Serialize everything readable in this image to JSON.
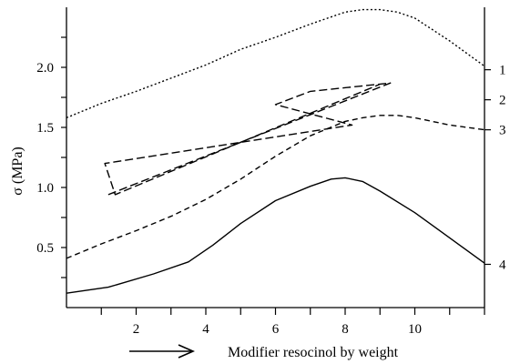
{
  "chart_data": {
    "type": "line",
    "title": "",
    "xlabel": "Modifier resocinol by weight",
    "ylabel": "σ (MPa)",
    "xlim": [
      0,
      12
    ],
    "ylim": [
      0,
      2.5
    ],
    "x_ticks": [
      1,
      2,
      3,
      4,
      5,
      6,
      7,
      8,
      9,
      10,
      11,
      12
    ],
    "x_tick_labels": [
      {
        "x": 2,
        "label": "2"
      },
      {
        "x": 4,
        "label": "4"
      },
      {
        "x": 6,
        "label": "6"
      },
      {
        "x": 8,
        "label": "8"
      },
      {
        "x": 10,
        "label": "10"
      }
    ],
    "y_ticks": [
      0.25,
      0.5,
      0.75,
      1.0,
      1.25,
      1.5,
      1.75,
      2.0,
      2.25
    ],
    "y_tick_labels": [
      {
        "y": 0.5,
        "label": "0.5"
      },
      {
        "y": 1.0,
        "label": "1.0"
      },
      {
        "y": 1.5,
        "label": "1.5"
      },
      {
        "y": 2.0,
        "label": "2.0"
      }
    ],
    "right_labels": [
      {
        "y": 1.98,
        "label": "1"
      },
      {
        "y": 1.73,
        "label": "2"
      },
      {
        "y": 1.48,
        "label": "3"
      },
      {
        "y": 0.36,
        "label": "4"
      }
    ],
    "series": [
      {
        "label": "1",
        "style": "dotted",
        "x": [
          0,
          1,
          2,
          3,
          4,
          5,
          6,
          7,
          7.5,
          8,
          8.5,
          9,
          9.5,
          10,
          11,
          12
        ],
        "y": [
          1.58,
          1.7,
          1.8,
          1.91,
          2.02,
          2.15,
          2.25,
          2.36,
          2.41,
          2.46,
          2.48,
          2.48,
          2.46,
          2.41,
          2.22,
          2.01
        ]
      },
      {
        "label": "2",
        "style": "long-dash",
        "x": [
          1.2,
          9.3,
          7.0,
          6.0,
          8.2,
          1.1,
          1.4,
          9.0
        ],
        "y": [
          0.94,
          1.87,
          1.8,
          1.69,
          1.52,
          1.2,
          0.94,
          1.86
        ]
      },
      {
        "label": "3",
        "style": "dashed",
        "x": [
          0,
          1,
          2,
          3,
          4,
          5,
          6,
          7,
          8,
          8.5,
          9,
          9.5,
          10,
          11,
          12
        ],
        "y": [
          0.41,
          0.53,
          0.64,
          0.76,
          0.9,
          1.07,
          1.26,
          1.43,
          1.55,
          1.58,
          1.6,
          1.6,
          1.58,
          1.52,
          1.48
        ]
      },
      {
        "label": "4",
        "style": "solid",
        "x": [
          0,
          1.2,
          2.5,
          3.5,
          4.2,
          5,
          6,
          7,
          7.6,
          8,
          8.5,
          9,
          10,
          11,
          12
        ],
        "y": [
          0.12,
          0.17,
          0.28,
          0.38,
          0.52,
          0.7,
          0.89,
          1.01,
          1.07,
          1.08,
          1.05,
          0.97,
          0.79,
          0.58,
          0.37
        ]
      }
    ]
  }
}
